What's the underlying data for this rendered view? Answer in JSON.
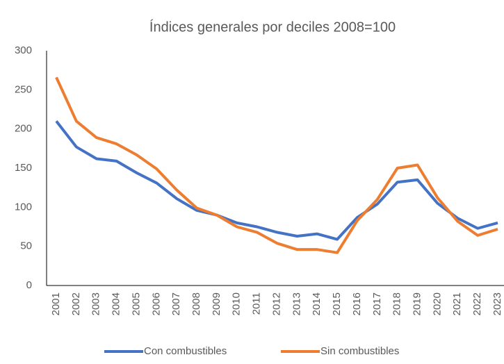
{
  "chart_data": {
    "type": "line",
    "title": "Índices generales por deciles 2008=100",
    "categories": [
      "2001",
      "2002",
      "2003",
      "2004",
      "2005",
      "2006",
      "2007",
      "2008",
      "2009",
      "2010",
      "2011",
      "2012",
      "2013",
      "2014",
      "2015",
      "2016",
      "2017",
      "2018",
      "2019",
      "2020",
      "2021",
      "2022",
      "2023"
    ],
    "series": [
      {
        "name": "Con combustibles",
        "color": "#4472c4",
        "values": [
          210,
          177,
          162,
          159,
          144,
          131,
          111,
          96,
          90,
          80,
          75,
          68,
          63,
          66,
          59,
          87,
          104,
          132,
          135,
          105,
          86,
          73,
          80
        ]
      },
      {
        "name": "Sin combustibles",
        "color": "#ed7d31",
        "values": [
          266,
          210,
          189,
          181,
          167,
          149,
          122,
          99,
          90,
          75,
          68,
          54,
          46,
          46,
          42,
          83,
          110,
          150,
          154,
          112,
          82,
          64,
          72
        ]
      }
    ],
    "ylim": [
      0,
      300
    ],
    "yticks": [
      0,
      50,
      100,
      150,
      200,
      250,
      300
    ],
    "grid": false,
    "legend": "bottom"
  }
}
